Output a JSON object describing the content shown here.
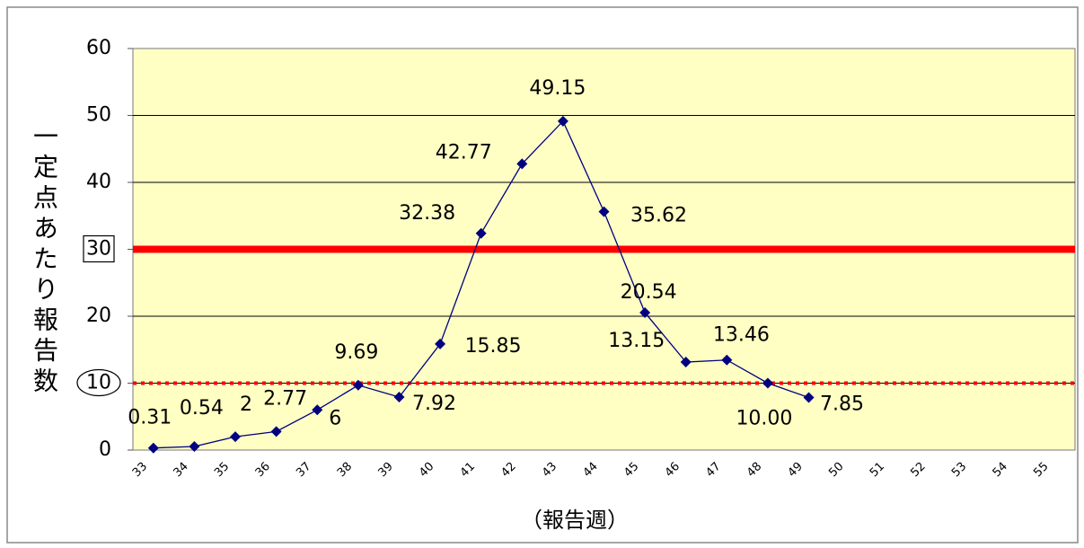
{
  "chart_data": {
    "type": "line",
    "x_label": "（報告週）",
    "y_label": "一定点あたり報告数",
    "categories": [
      "33",
      "34",
      "35",
      "36",
      "37",
      "38",
      "39",
      "40",
      "41",
      "42",
      "43",
      "44",
      "45",
      "46",
      "47",
      "48",
      "49",
      "50",
      "51",
      "52",
      "53",
      "54",
      "55"
    ],
    "series": [
      {
        "color": "#000080",
        "values": [
          0.31,
          0.54,
          2,
          2.77,
          6,
          9.69,
          7.92,
          15.85,
          32.38,
          42.77,
          49.15,
          35.62,
          20.54,
          13.15,
          13.46,
          10,
          7.85,
          null,
          null,
          null,
          null,
          null,
          null
        ],
        "value_labels": [
          "0.31",
          "0.54",
          "2",
          "2.77",
          "6",
          "9.69",
          "7.92",
          "15.85",
          "32.38",
          "42.77",
          "49.15",
          "35.62",
          "20.54",
          "13.15",
          "13.46",
          "10.00",
          "7.85",
          null,
          null,
          null,
          null,
          null,
          null
        ]
      }
    ],
    "ylim": [
      0,
      60
    ],
    "yticks": [
      0,
      10,
      20,
      30,
      40,
      50,
      60
    ],
    "grid": true,
    "reference_lines": [
      {
        "value": 30,
        "style": "solid",
        "color": "#ff0000"
      },
      {
        "value": 10,
        "style": "dotted",
        "color": "#ff0000"
      }
    ]
  }
}
